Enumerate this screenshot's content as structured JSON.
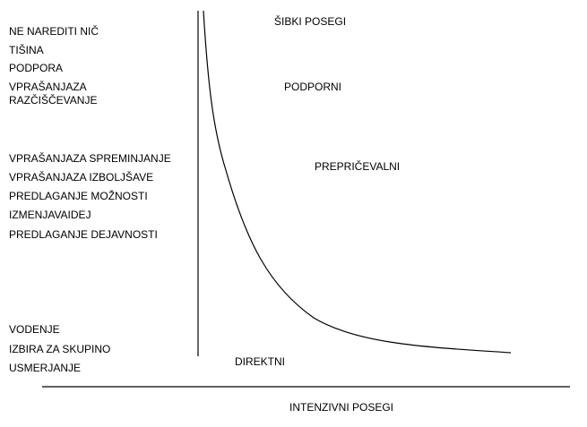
{
  "left_labels": {
    "ne_narediti": "NE NAREDITI NIČ",
    "tisina": "TIŠINA",
    "podpora": "PODPORA",
    "vprasanja_razciscevanje_1": "VPRAŠANJAZA",
    "vprasanja_razciscevanje_2": "RAZČIŠČEVANJE",
    "vprasanja_spreminjanje": "VPRAŠANJAZA SPREMINJANJE",
    "vprasanja_izboljsave": "VPRAŠANJAZA IZBOLJŠAVE",
    "predlaganje_moznosti": "PREDLAGANJE MOŽNOSTI",
    "izmenjava_idej": "IZMENJAVAIDEJ",
    "predlaganje_dejavnosti": "PREDLAGANJE DEJAVNOSTI",
    "vodenje": "VODENJE",
    "izbira_za_skupino": "IZBIRA ZA SKUPINO",
    "usmerjanje": "USMERJANJE"
  },
  "curve_labels": {
    "sibki_posegi": "ŠIBKI POSEGI",
    "podporni": "PODPORNI",
    "preprichevalni": "PREPRIČEVALNI",
    "direktni": "DIREKTNI"
  },
  "axis_label": "INTENZIVNI POSEGI"
}
